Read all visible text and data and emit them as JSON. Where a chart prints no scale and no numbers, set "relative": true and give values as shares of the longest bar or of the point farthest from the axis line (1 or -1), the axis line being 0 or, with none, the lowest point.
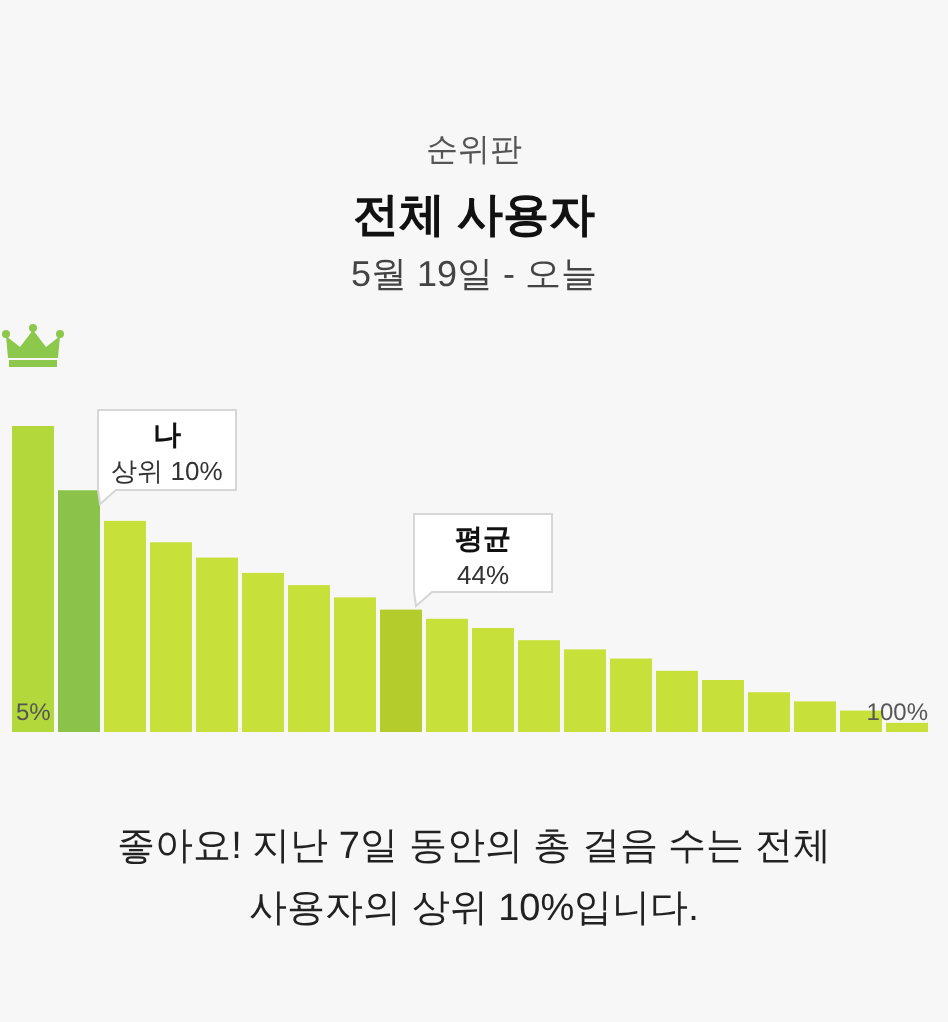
{
  "chart_data": {
    "type": "bar",
    "title": "전체 사용자",
    "subtitle": "5월 19일 - 오늘",
    "categories": [
      "5%",
      null,
      null,
      null,
      null,
      null,
      null,
      null,
      null,
      null,
      null,
      null,
      null,
      null,
      null,
      null,
      null,
      null,
      null,
      "100%"
    ],
    "values": [
      1,
      0.79,
      0.69,
      0.62,
      0.57,
      0.52,
      0.48,
      0.44,
      0.4,
      0.37,
      0.34,
      0.3,
      0.27,
      0.24,
      0.2,
      0.17,
      0.13,
      0.1,
      0.07,
      0.03
    ],
    "colors": [
      "#b3d83c",
      "#8bc34a",
      "#c8e03a",
      "#c8e03a",
      "#c8e03a",
      "#c8e03a",
      "#c8e03a",
      "#c8e03a",
      "#b5cd2c",
      "#c8e03a",
      "#c8e03a",
      "#c8e03a",
      "#c8e03a",
      "#c8e03a",
      "#c8e03a",
      "#c8e03a",
      "#c8e03a",
      "#c8e03a",
      "#c8e03a",
      "#c8e03a"
    ],
    "relative": true,
    "annotations": [
      "순위판",
      "나",
      "상위 10%",
      "평균",
      "44%",
      "좋아요! 지난 7일 동안의 총 걸음 수는 전체 사용자의 상위 10%입니다."
    ]
  }
}
